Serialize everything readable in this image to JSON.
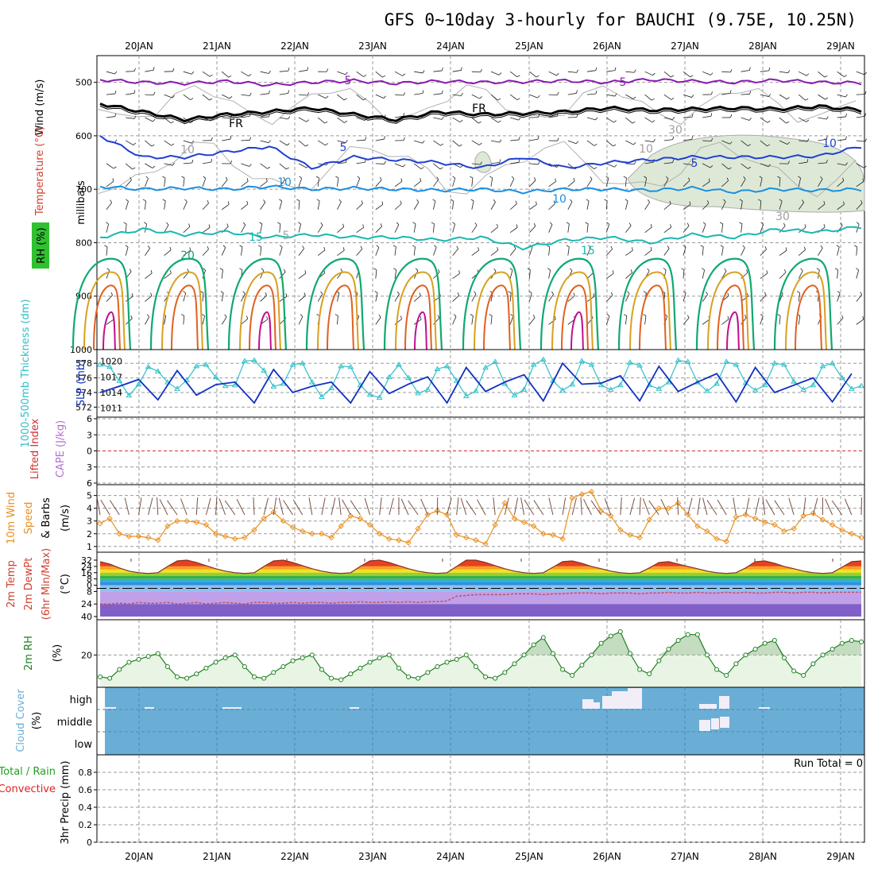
{
  "title": "GFS 0~10day 3-hourly for BAUCHI (9.75E, 10.25N)",
  "colors": {
    "grid": "#9a9a9a",
    "temp5": "#8a1ab0",
    "tempFR": "#000000",
    "temp5b": "#2040d0",
    "temp10": "#1a8fe0",
    "temp15": "#18b8b0",
    "temp20": "#10a870",
    "temp25": "#d8a020",
    "temp30": "#e06020",
    "temp35": "#c01090",
    "thickness": "#30c0c8",
    "slp": "#1030c0",
    "wind10m": "#e89020",
    "barb": "#7a5040",
    "rh2m": "#208020",
    "rhfill": "#e8f4e4",
    "rhfill2": "#c4dcc0",
    "cloud": "#6aaed6",
    "cloudGap": "#f2eef8",
    "lifted": "#d03030",
    "cape": "#b070d0",
    "precipGreen": "#20a020",
    "precipRed": "#e02020"
  },
  "chart_data": [
    {
      "panel": "upper-air",
      "type": "contour",
      "title": "GFS 0~10day 3-hourly for BAUCHI (9.75E, 10.25N)",
      "ylabel": "millibars",
      "side_labels": [
        "Wind (m/s)",
        "Temperature (°C)",
        "RH (%)"
      ],
      "x_dates": [
        "20JAN",
        "21JAN",
        "22JAN",
        "23JAN",
        "24JAN",
        "25JAN",
        "26JAN",
        "27JAN",
        "28JAN",
        "29JAN"
      ],
      "yticks": [
        500,
        600,
        700,
        800,
        900,
        1000
      ],
      "ylim": [
        1000,
        450
      ],
      "contour_labels": [
        "5",
        "FR",
        "5",
        "10",
        "15",
        "20",
        "5",
        "FR",
        "5",
        "10",
        "10",
        "15",
        "10",
        "10",
        "30",
        "30",
        "5"
      ],
      "isotherms": [
        {
          "label": "5",
          "level_mb": [
            495,
            500,
            502,
            498,
            505,
            500,
            497,
            502,
            498,
            500,
            499,
            497,
            500,
            495,
            498,
            500,
            496,
            500,
            501
          ]
        },
        {
          "label": "FR",
          "level_mb": [
            540,
            555,
            570,
            560,
            555,
            548,
            560,
            570,
            555,
            560,
            558,
            555,
            548,
            552,
            550,
            548,
            550,
            545,
            552
          ]
        },
        {
          "label": "5b",
          "level_mb": [
            600,
            640,
            640,
            630,
            620,
            660,
            640,
            645,
            650,
            660,
            640,
            660,
            650,
            645,
            640,
            640,
            640,
            638,
            620
          ]
        },
        {
          "label": "10",
          "level_mb": [
            695,
            700,
            698,
            700,
            695,
            700,
            698,
            700,
            702,
            700,
            705,
            700,
            700,
            702,
            698,
            705,
            700,
            702,
            700
          ]
        },
        {
          "label": "15",
          "level_mb": [
            790,
            775,
            785,
            780,
            790,
            785,
            790,
            790,
            795,
            790,
            810,
            795,
            790,
            800,
            785,
            790,
            775,
            780,
            770
          ]
        }
      ]
    },
    {
      "panel": "thickness-slp",
      "type": "line",
      "ylabel_left": "1000-500mb Thickness (dm)",
      "ylabel_right": "SLP (mb)",
      "yticks_left": [
        572,
        574,
        576,
        578
      ],
      "yticks_right": [
        1011,
        1014,
        1017,
        1020
      ],
      "series": [
        {
          "name": "Thickness",
          "values": [
            577.8,
            577.5,
            575.6,
            573.6,
            575.1,
            577.5,
            576.9,
            575.4,
            574.5,
            575.7,
            577.6,
            577.8,
            576.1,
            574.9,
            575.0,
            578.3,
            578.4,
            577.0,
            574.8,
            575.2,
            577.8,
            578.0,
            575.4,
            573.4,
            574.6,
            577.6,
            577.5,
            575.0,
            573.7,
            573.3,
            576.1,
            577.8,
            576.0,
            573.9,
            574.4,
            577.2,
            577.6,
            575.6,
            573.5,
            574.2,
            577.4,
            578.2,
            575.2,
            573.6,
            574.4,
            577.8,
            578.5,
            575.6,
            574.3,
            575.1,
            578.3,
            577.8,
            575.0,
            574.4,
            575.0,
            578.1,
            577.7,
            575.0,
            574.5,
            575.4,
            578.4,
            578.2,
            575.4,
            574.2,
            575.2,
            578.2,
            577.8,
            575.3,
            574.3,
            575.0,
            578.0,
            577.8,
            575.5,
            574.4,
            575.0,
            577.6,
            578.0,
            576.0,
            574.5,
            574.9
          ]
        },
        {
          "name": "SLP",
          "values": [
            1014.0,
            1012.0,
            1015.2,
            1017.8,
            1016.5,
            1014.0,
            1012.6,
            1016.0,
            1018.2,
            1016.0,
            1013.5,
            1012.2,
            1015.5,
            1017.4,
            1016.0,
            1014.0,
            1012.0,
            1015.6,
            1018.4,
            1016.2,
            1014.0,
            1011.8,
            1015.2,
            1017.6,
            1016.0,
            1014.4,
            1012.0,
            1015.8,
            1018.0,
            1016.4,
            1013.8,
            1012.4,
            1015.6,
            1018.6,
            1017.0,
            1014.2,
            1012.0,
            1015.4,
            1018.8,
            1017.0,
            1014.2,
            1012.6,
            1016.0,
            1019.2,
            1017.4,
            1014.6,
            1012.4,
            1016.0,
            1019.6,
            1018.4,
            1015.6,
            1013.0,
            1015.8,
            1018.6,
            1017.2,
            1014.0,
            1012.4,
            1016.0,
            1019.0,
            1017.4,
            1014.2,
            1012.0,
            1016.0,
            1019.0,
            1017.6,
            1014.6,
            1012.2,
            1015.8,
            1018.8,
            1017.4,
            1014.0,
            1012.0,
            1015.4,
            1018.2,
            1016.8,
            1014.2,
            1012.2,
            1015.0,
            1017.6,
            1016.0
          ]
        }
      ]
    },
    {
      "panel": "stability",
      "type": "line",
      "ylabel_left": "Lifted Index",
      "ylabel_right": "CAPE (J/kg)",
      "yticks": [
        6,
        3,
        0,
        -3,
        -6
      ],
      "series": [
        {
          "name": "Lifted Index",
          "values": []
        }
      ]
    },
    {
      "panel": "wind-10m",
      "type": "line",
      "ylabel": "10m Wind Speed & Barbs (m/s)",
      "yticks": [
        1,
        2,
        3,
        4,
        5
      ],
      "ylim": [
        0.8,
        5.6
      ],
      "series": [
        {
          "name": "10m Wind Speed",
          "values": [
            2.8,
            3.2,
            2.0,
            1.8,
            1.8,
            1.7,
            1.5,
            2.6,
            3.0,
            3.0,
            2.9,
            2.7,
            2.0,
            1.8,
            1.6,
            1.7,
            2.3,
            3.2,
            3.7,
            3.0,
            2.5,
            2.2,
            2.0,
            2.0,
            1.7,
            2.6,
            3.4,
            3.2,
            2.7,
            2.0,
            1.6,
            1.5,
            1.3,
            2.4,
            3.5,
            3.8,
            3.5,
            1.9,
            1.7,
            1.5,
            1.2,
            2.7,
            4.4,
            3.2,
            2.9,
            2.6,
            2.0,
            1.9,
            1.6,
            4.8,
            5.1,
            5.3,
            3.8,
            3.4,
            2.3,
            1.9,
            1.7,
            3.1,
            4.0,
            4.0,
            4.4,
            3.5,
            2.6,
            2.2,
            1.6,
            1.4,
            3.3,
            3.5,
            3.2,
            2.9,
            2.7,
            2.2,
            2.4,
            3.4,
            3.6,
            3.1,
            2.7,
            2.3,
            2.0,
            1.7
          ]
        }
      ]
    },
    {
      "panel": "temperature-2m",
      "type": "area",
      "ylabel": "2m Temp 2m DewPt (6hr Min/Max) (°C)",
      "yticks": [
        32,
        24,
        16,
        8,
        0,
        -8,
        -24,
        -40
      ],
      "series": [
        {
          "name": "2m Temp",
          "values": [
            30,
            27,
            22,
            18,
            16,
            15,
            16,
            24,
            31,
            32,
            29,
            25,
            21,
            18,
            16,
            15,
            16,
            24,
            31,
            32,
            29,
            25,
            21,
            18,
            16,
            15,
            16,
            24,
            31,
            32,
            29,
            25,
            21,
            18,
            16,
            15,
            16,
            24,
            32,
            32,
            29,
            25,
            21,
            18,
            16,
            15,
            16,
            23,
            30,
            31,
            28,
            24,
            21,
            18,
            16,
            15,
            16,
            22,
            29,
            30,
            27,
            24,
            21,
            18,
            16,
            15,
            16,
            22,
            30,
            31,
            28,
            24,
            21,
            18,
            16,
            15,
            16,
            23,
            30,
            31
          ]
        },
        {
          "name": "2m DewPt",
          "values": [
            -24,
            -24,
            -23,
            -24,
            -22,
            -23,
            -23,
            -22,
            -24,
            -23,
            -22,
            -24,
            -23,
            -22,
            -23,
            -24,
            -22,
            -22,
            -23,
            -23,
            -22,
            -23,
            -22,
            -22,
            -23,
            -22,
            -22,
            -21,
            -22,
            -22,
            -21,
            -22,
            -21,
            -22,
            -21,
            -21,
            -20,
            -14,
            -13,
            -12,
            -12,
            -12,
            -12,
            -11,
            -11,
            -11,
            -12,
            -11,
            -11,
            -10,
            -10,
            -10,
            -11,
            -10,
            -10,
            -10,
            -11,
            -10,
            -10,
            -9,
            -10,
            -10,
            -9,
            -10,
            -10,
            -9,
            -10,
            -9,
            -10,
            -10,
            -9,
            -9,
            -10,
            -9,
            -9,
            -10,
            -9,
            -9,
            -9,
            -9
          ]
        }
      ]
    },
    {
      "panel": "rh-2m",
      "type": "area",
      "ylabel": "2m RH (%)",
      "yticks": [
        20
      ],
      "series": [
        {
          "name": "2m RH",
          "values": [
            5,
            4,
            10,
            15,
            17,
            19,
            21,
            12,
            5,
            4,
            7,
            11,
            15,
            18,
            20,
            12,
            5,
            4,
            8,
            12,
            16,
            18,
            20,
            10,
            4,
            3,
            7,
            11,
            15,
            18,
            20,
            11,
            5,
            4,
            8,
            12,
            15,
            17,
            20,
            12,
            5,
            4,
            8,
            14,
            20,
            27,
            32,
            21,
            10,
            6,
            13,
            20,
            28,
            33,
            36,
            21,
            10,
            7,
            16,
            24,
            30,
            34,
            34,
            20,
            10,
            6,
            14,
            20,
            24,
            28,
            30,
            18,
            9,
            6,
            14,
            20,
            24,
            28,
            30,
            29
          ]
        }
      ]
    },
    {
      "panel": "cloud-cover",
      "type": "heatmap",
      "ylabel": "Cloud Cover (%)",
      "yticks": [
        "high",
        "middle",
        "low"
      ],
      "gaps_high_dates": [
        "25JAN",
        "26JAN",
        "27JAN",
        "28JAN"
      ],
      "gaps_middle_dates": [
        "27JAN"
      ]
    },
    {
      "panel": "precip",
      "type": "bar",
      "ylabel": "3hr Precip (mm)",
      "legend": [
        "Total / Rain",
        "Convective"
      ],
      "yticks": [
        0,
        0.2,
        0.4,
        0.6,
        0.8
      ],
      "ylim": [
        0,
        1
      ],
      "run_total": "Run Total = 0",
      "values": []
    }
  ]
}
